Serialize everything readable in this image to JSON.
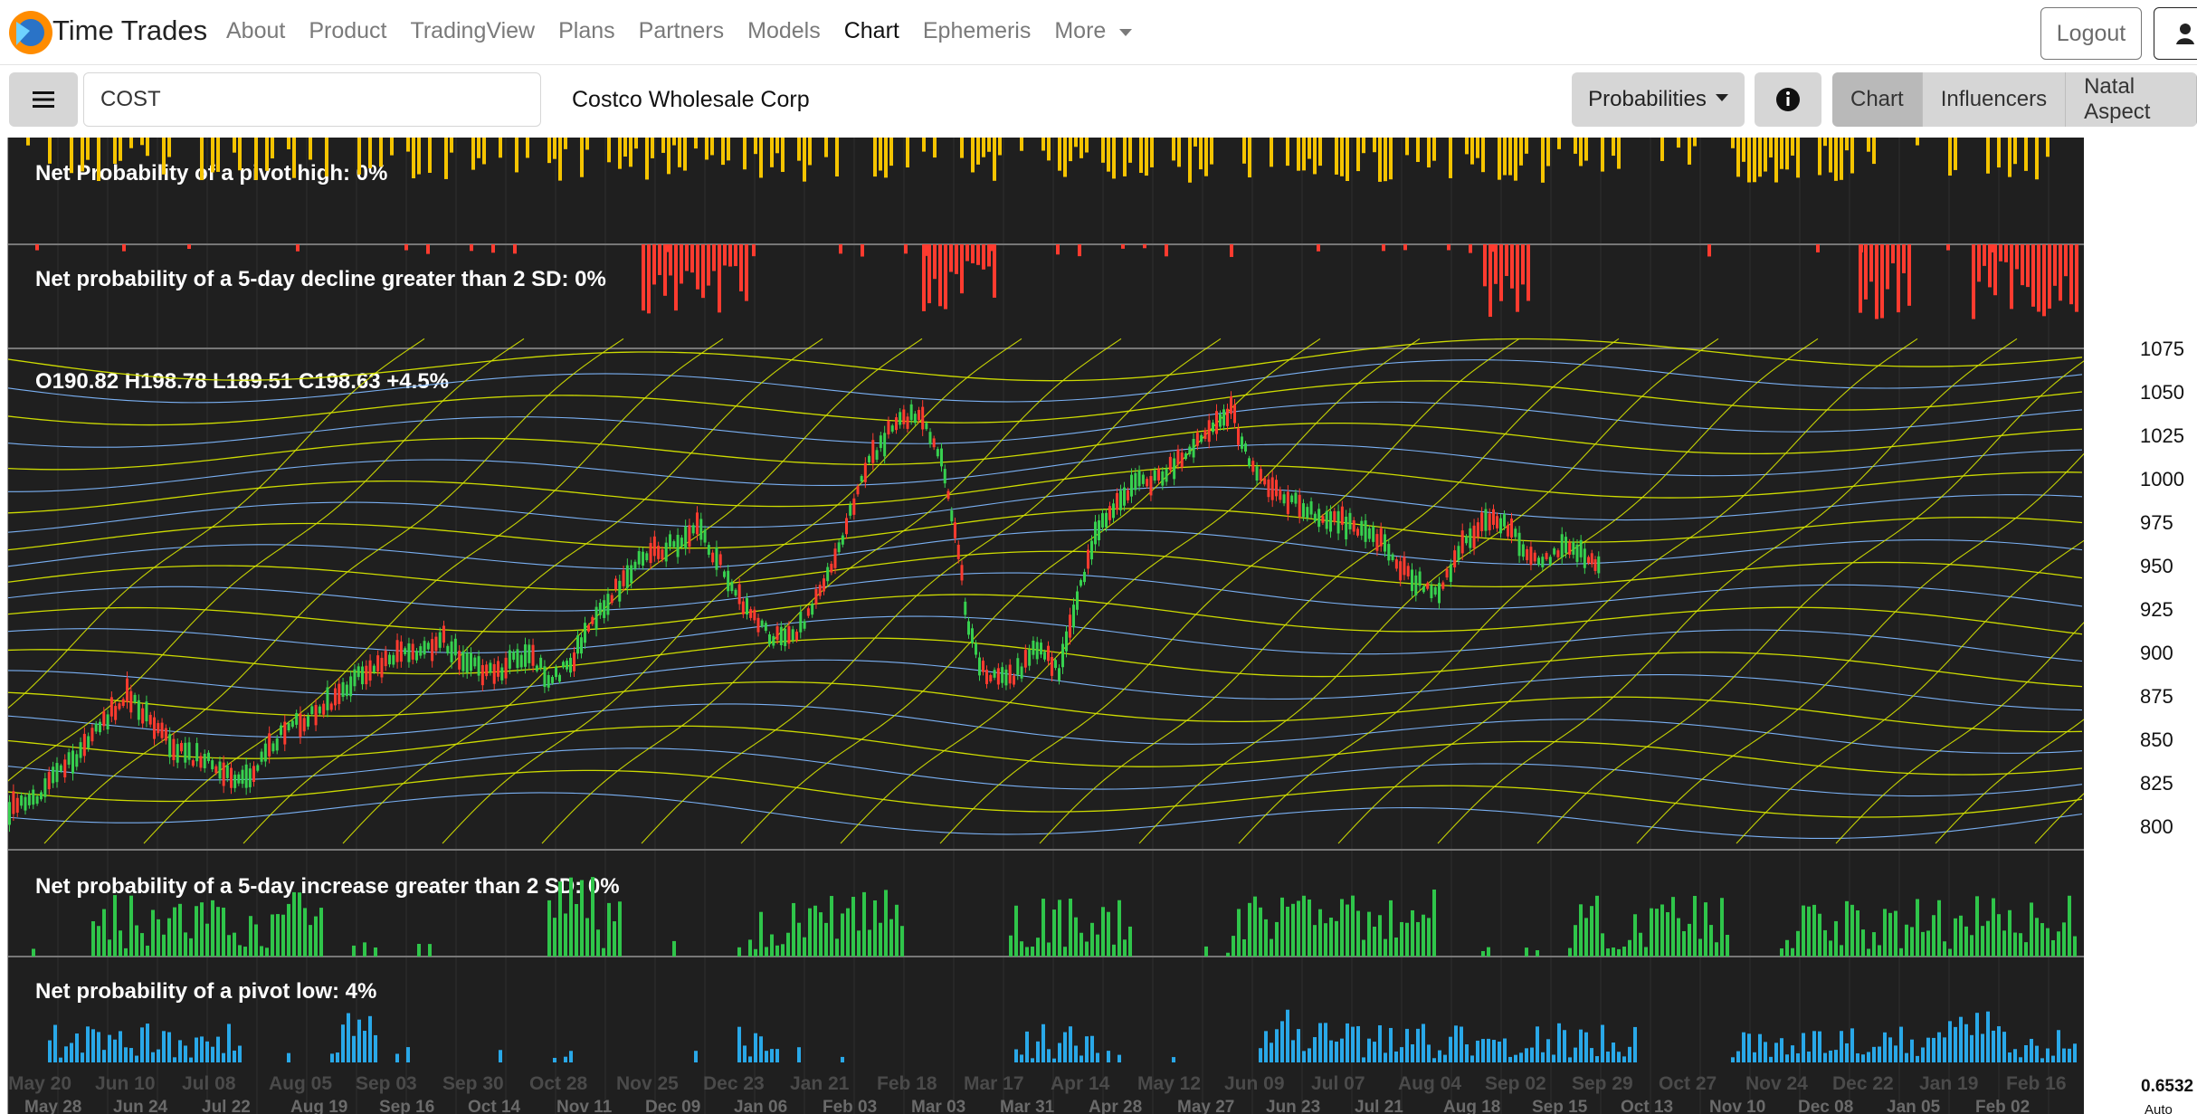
{
  "app": {
    "title": "Time Trades"
  },
  "nav": {
    "items": [
      "About",
      "Product",
      "TradingView",
      "Plans",
      "Partners",
      "Models",
      "Chart",
      "Ephemeris",
      "More"
    ],
    "active": "Chart",
    "logout_label": "Logout"
  },
  "toolbar": {
    "symbol": "COST",
    "company": "Costco Wholesale Corp",
    "probabilities_label": "Probabilities",
    "tabs": [
      "Chart",
      "Influencers",
      "Natal Aspect"
    ],
    "active_tab": "Chart"
  },
  "panels": {
    "pivot_high": "Net Probability of a pivot high: 0%",
    "decline": "Net probability of a 5-day decline greater than 2 SD: 0%",
    "ohlc": "O190.82 H198.78 L189.51 C198.63 +4.5%",
    "increase": "Net probability of a 5-day increase greater than 2 SD: 0%",
    "pivot_low": "Net probability of a pivot low: 4%"
  },
  "axis": {
    "price_ticks": [
      "1075",
      "1050",
      "1025",
      "1000",
      "975",
      "950",
      "925",
      "900",
      "875",
      "850",
      "825",
      "800"
    ],
    "bottom_right_value": "0.6532",
    "bottom_right_sub": "Auto"
  },
  "dates": {
    "top": [
      "May 20",
      "Jun 10",
      "Jul 08",
      "Aug 05",
      "Sep 03",
      "Sep 30",
      "Oct 28",
      "Nov 25",
      "Dec 23",
      "Jan 21",
      "Feb 18",
      "Mar 17",
      "Apr 14",
      "May 12",
      "Jun 09",
      "Jul 07",
      "Aug 04",
      "Sep 02",
      "Sep 29",
      "Oct 27",
      "Nov 24",
      "Dec 22",
      "Jan 19",
      "Feb 16"
    ],
    "bottom": [
      "May 28",
      "Jun 24",
      "Jul 22",
      "Aug 19",
      "Sep 16",
      "Oct 14",
      "Nov 11",
      "Dec 09",
      "Jan 06",
      "Feb 03",
      "Mar 03",
      "Mar 31",
      "Apr 28",
      "May 27",
      "Jun 23",
      "Jul 21",
      "Aug 18",
      "Sep 15",
      "Oct 13",
      "Nov 10",
      "Dec 08",
      "Jan 05",
      "Feb 02"
    ]
  },
  "colors": {
    "pivot_high": "#f5c400",
    "decline": "#ff3b2f",
    "increase": "#2fc54a",
    "pivot_low": "#29a8e8",
    "up_candle": "#37d04f",
    "down_candle": "#ff3b2f",
    "panel_bg": "#1f1f1f",
    "curve_yellow": "#d7e600",
    "curve_blue": "#7fb8ff"
  }
}
